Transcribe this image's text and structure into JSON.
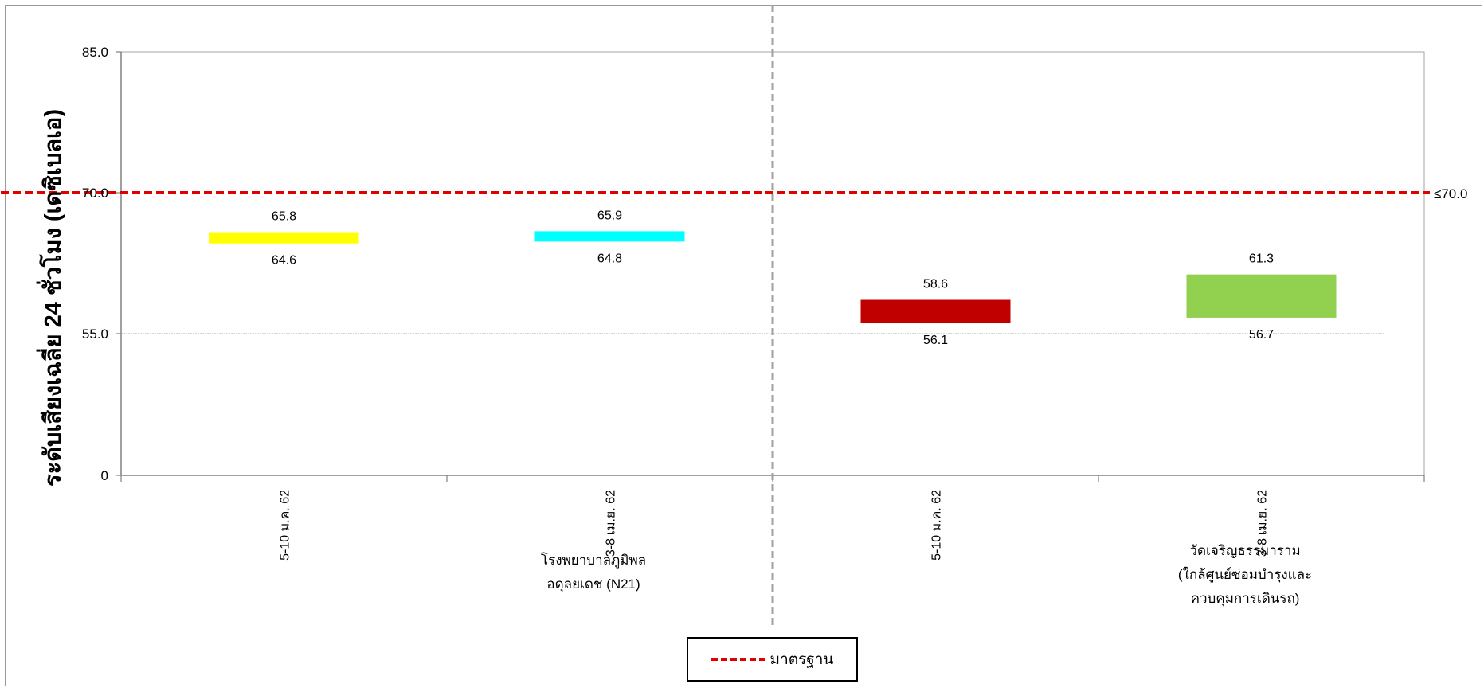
{
  "chart_data": {
    "type": "bar",
    "subtype": "floating-range",
    "title": "",
    "xlabel": "",
    "ylabel": "ระดับเสียงเฉลี่ย 24 ชั่วโมง (เดซิเบลเอ)",
    "yticks": [
      "0",
      "55.0",
      "70.0",
      "85.0"
    ],
    "ytick_values": [
      0,
      55,
      70,
      85
    ],
    "y_scale": "broken axis: 0 to 55 compressed, 55 to 85 linear",
    "ylim": [
      0,
      85
    ],
    "groups": [
      {
        "label": "โรงพยาบาลภูมิพล\nอดุลยเดช (N21)"
      },
      {
        "label": "วัดเจริญธรรมาราม\n(ใกล้ศูนย์ซ่อมบำรุงและ\nควบคุมการเดินรถ)"
      }
    ],
    "categories": [
      "5-10 ม.ค. 62",
      "3-8 เม.ย. 62",
      "5-10 ม.ค. 62",
      "3-8 เม.ย. 62"
    ],
    "series": [
      {
        "values": [
          {
            "low": 64.6,
            "high": 65.8,
            "low_label": "64.6",
            "high_label": "65.8",
            "color": "#ffff00"
          },
          {
            "low": 64.8,
            "high": 65.9,
            "low_label": "64.8",
            "high_label": "65.9",
            "color": "#00ffff"
          },
          {
            "low": 56.1,
            "high": 58.6,
            "low_label": "56.1",
            "high_label": "58.6",
            "color": "#c00000"
          },
          {
            "low": 56.7,
            "high": 61.3,
            "low_label": "56.7",
            "high_label": "61.3",
            "color": "#92d050"
          }
        ]
      }
    ],
    "standard_line": {
      "value": 70.0,
      "label": "≤70.0",
      "color": "#e00000"
    },
    "grid": false,
    "legend": {
      "position": "bottom-center",
      "entries": [
        {
          "label": "มาตรฐาน",
          "style": "dashed",
          "color": "#e00000"
        }
      ]
    }
  }
}
